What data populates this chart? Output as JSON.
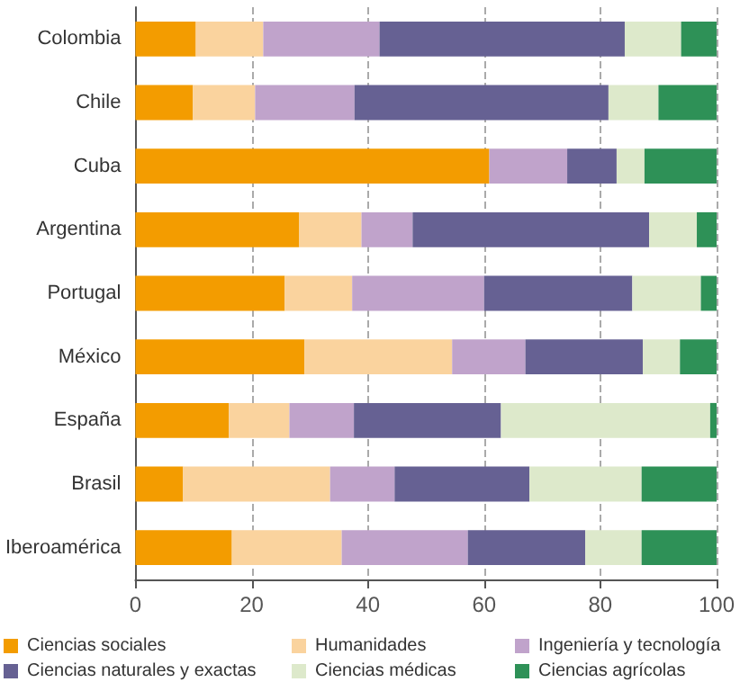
{
  "chart_data": {
    "type": "bar",
    "orientation": "horizontal",
    "stacked": true,
    "categories": [
      "Colombia",
      "Chile",
      "Cuba",
      "Argentina",
      "Portugal",
      "México",
      "España",
      "Brasil",
      "Iberoamérica"
    ],
    "series": [
      {
        "name": "Ciencias sociales",
        "color": "#f39c00",
        "values": [
          10.4,
          9.9,
          60.9,
          28.2,
          25.7,
          29.1,
          16.1,
          8.2,
          16.6
        ]
      },
      {
        "name": "Humanidades",
        "color": "#fad39e",
        "values": [
          11.6,
          10.7,
          0,
          10.7,
          11.6,
          25.4,
          10.4,
          25.3,
          18.9
        ]
      },
      {
        "name": "Ingeniería y tecnología",
        "color": "#c0a3cb",
        "values": [
          20.0,
          17.1,
          13.4,
          8.8,
          22.7,
          12.6,
          11.1,
          11.1,
          21.7
        ]
      },
      {
        "name": "Ciencias naturales y exactas",
        "color": "#666193",
        "values": [
          42.2,
          43.7,
          8.5,
          40.7,
          25.5,
          20.2,
          25.3,
          23.2,
          20.2
        ]
      },
      {
        "name": "Ciencias médicas",
        "color": "#dde9cb",
        "values": [
          9.7,
          8.6,
          4.8,
          8.2,
          11.8,
          6.4,
          36.0,
          19.3,
          9.7
        ]
      },
      {
        "name": "Ciencias agrícolas",
        "color": "#2e9157",
        "values": [
          6.1,
          10.0,
          12.4,
          3.4,
          2.7,
          6.3,
          1.1,
          12.9,
          12.9
        ]
      }
    ],
    "xlim": [
      0,
      100
    ],
    "xticks": [
      0,
      20,
      40,
      60,
      80,
      100
    ],
    "grid": "x",
    "legend": "bottom"
  }
}
